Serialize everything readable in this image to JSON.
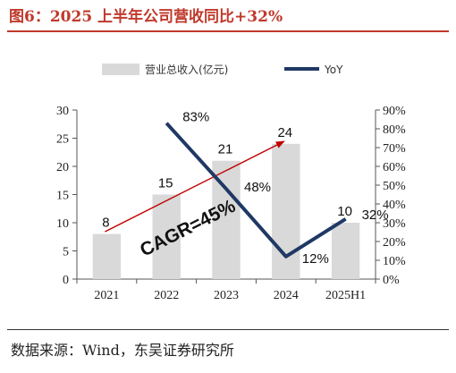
{
  "header": {
    "title": "图6：2025 上半年公司营收同比+32%"
  },
  "footer": {
    "source": "数据来源：Wind，东吴证券研究所"
  },
  "chart_data": {
    "type": "bar",
    "categories": [
      "2021",
      "2022",
      "2023",
      "2024",
      "2025H1"
    ],
    "series": [
      {
        "name": "营业总收入(亿元)",
        "type": "bar",
        "axis": "left",
        "values": [
          8,
          15,
          21,
          24,
          10
        ],
        "labels": [
          "8",
          "15",
          "21",
          "24",
          "10"
        ],
        "color": "#d9d9d9"
      },
      {
        "name": "YoY",
        "type": "line",
        "axis": "right",
        "x": [
          "2022",
          "2023",
          "2024",
          "2025H1"
        ],
        "values": [
          83,
          48,
          12,
          32
        ],
        "labels": [
          "83%",
          "48%",
          "12%",
          "32%"
        ],
        "color": "#1f3864"
      }
    ],
    "y_left": {
      "range": [
        0,
        30
      ],
      "ticks": [
        "0",
        "5",
        "10",
        "15",
        "20",
        "25",
        "30"
      ]
    },
    "y_right": {
      "range": [
        0,
        90
      ],
      "unit": "%",
      "ticks": [
        "0%",
        "10%",
        "20%",
        "30%",
        "40%",
        "50%",
        "60%",
        "70%",
        "80%",
        "90%"
      ]
    },
    "annotation": {
      "text": "CAGR=45%",
      "from": "2021",
      "to": "2024",
      "arrow_color": "#c00000"
    },
    "legend": {
      "placement": "top"
    },
    "grid": false
  }
}
